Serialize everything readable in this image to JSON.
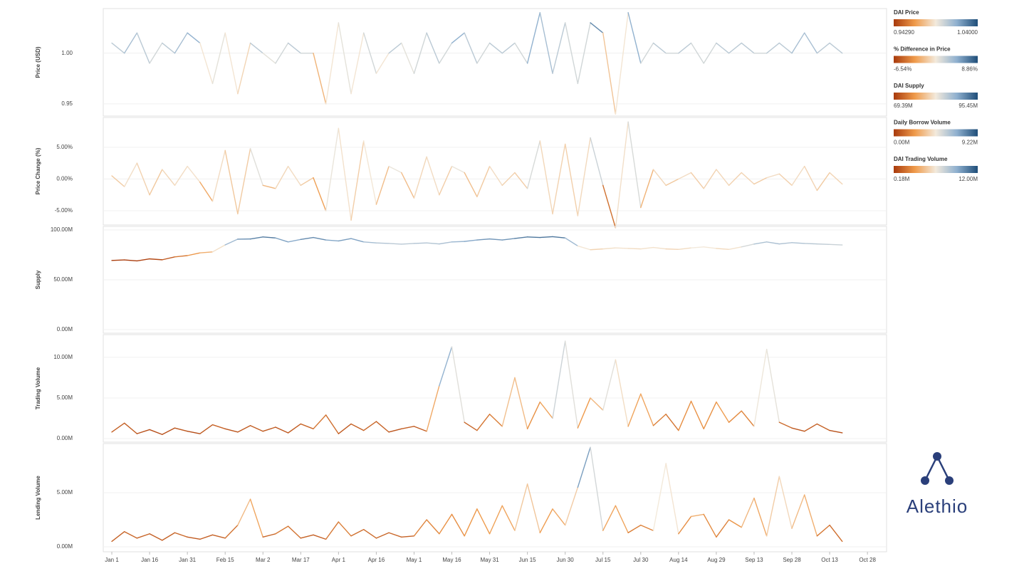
{
  "logo": "Alethio",
  "chart_data": [
    {
      "type": "line",
      "ylabel": "Price (USD)",
      "ylim": [
        0.938,
        1.044
      ],
      "yticks": [
        0.95,
        {
          "value": 1,
          "label": "1.00"
        }
      ],
      "xlim": [
        -3.4,
        307.6
      ],
      "x": [
        0,
        5,
        10,
        15,
        20,
        25,
        30,
        35,
        40,
        45,
        50,
        55,
        60,
        65,
        70,
        75,
        80,
        85,
        90,
        95,
        100,
        105,
        110,
        115,
        120,
        125,
        130,
        135,
        140,
        145,
        150,
        155,
        160,
        165,
        170,
        175,
        180,
        185,
        190,
        195,
        200,
        205,
        210,
        215,
        220,
        225,
        230,
        235,
        240,
        245,
        250,
        255,
        260,
        265,
        270,
        275,
        280,
        285,
        290
      ],
      "values": [
        1.01,
        1.0,
        1.02,
        0.99,
        1.01,
        1.0,
        1.02,
        1.01,
        0.97,
        1.02,
        0.96,
        1.01,
        1.0,
        0.99,
        1.01,
        1.0,
        1.0,
        0.95,
        1.03,
        0.96,
        1.02,
        0.98,
        1.0,
        1.01,
        0.98,
        1.02,
        0.99,
        1.01,
        1.02,
        0.99,
        1.01,
        1.0,
        1.01,
        0.99,
        1.04,
        0.98,
        1.03,
        0.97,
        1.03,
        1.02,
        0.94,
        1.04,
        0.99,
        1.01,
        1.0,
        1.0,
        1.01,
        0.99,
        1.01,
        1.0,
        1.01,
        1.0,
        1.0,
        1.01,
        1.0,
        1.02,
        1.0,
        1.01,
        1.0
      ],
      "color_scale": {
        "title": "DAI Price",
        "min": {
          "value": 0.9429,
          "label": "0.94290"
        },
        "max": {
          "value": 1.04,
          "label": "1.04000"
        },
        "colors": [
          "#a83a0c",
          "#ef9a4a",
          "#f3eadc",
          "#8fb0cf",
          "#1f4e79"
        ]
      }
    },
    {
      "type": "line",
      "ylabel": "Price Change (%)",
      "ylim": [
        -7.25,
        9.7
      ],
      "yticks": [
        {
          "value": -5,
          "label": "-5.00%"
        },
        {
          "value": 0,
          "label": "0.00%"
        },
        {
          "value": 5,
          "label": "5.00%"
        }
      ],
      "xlim": [
        -3.4,
        307.6
      ],
      "x": [
        0,
        5,
        10,
        15,
        20,
        25,
        30,
        35,
        40,
        45,
        50,
        55,
        60,
        65,
        70,
        75,
        80,
        85,
        90,
        95,
        100,
        105,
        110,
        115,
        120,
        125,
        130,
        135,
        140,
        145,
        150,
        155,
        160,
        165,
        170,
        175,
        180,
        185,
        190,
        195,
        200,
        205,
        210,
        215,
        220,
        225,
        230,
        235,
        240,
        245,
        250,
        255,
        260,
        265,
        270,
        275,
        280,
        285,
        290
      ],
      "values": [
        0.5,
        -1.2,
        2.5,
        -2.5,
        1.5,
        -1.0,
        2.0,
        -0.5,
        -3.5,
        4.5,
        -5.5,
        4.8,
        -1.0,
        -1.5,
        2.0,
        -1.0,
        0.2,
        -5.0,
        8.0,
        -6.5,
        6.0,
        -4.0,
        2.0,
        1.0,
        -3.0,
        3.5,
        -2.5,
        2.0,
        1.0,
        -2.8,
        2.0,
        -1.0,
        1.0,
        -1.5,
        6.0,
        -5.5,
        5.5,
        -5.8,
        6.5,
        -1.0,
        -7.7,
        9.0,
        -4.5,
        1.5,
        -1.0,
        0.0,
        1.0,
        -1.5,
        1.5,
        -1.0,
        1.0,
        -0.8,
        0.2,
        0.8,
        -1.0,
        2.0,
        -1.8,
        1.0,
        -0.8
      ],
      "color_scale": {
        "title": "% Difference in Price",
        "min": {
          "value": -6.54,
          "label": "-6.54%"
        },
        "max": {
          "value": 8.86,
          "label": "8.86%"
        },
        "colors": [
          "#a83a0c",
          "#ef9a4a",
          "#f3eadc",
          "#8fb0cf",
          "#1f4e79"
        ]
      }
    },
    {
      "type": "line",
      "ylabel": "Supply",
      "ylim": [
        -3.6,
        103.6
      ],
      "yticks": [
        {
          "value": 0,
          "label": "0.00M"
        },
        {
          "value": 50,
          "label": "50.00M"
        },
        {
          "value": 100,
          "label": "100.00M"
        }
      ],
      "xlim": [
        -3.4,
        307.6
      ],
      "x": [
        0,
        5,
        10,
        15,
        20,
        25,
        30,
        35,
        40,
        45,
        50,
        55,
        60,
        65,
        70,
        75,
        80,
        85,
        90,
        95,
        100,
        105,
        110,
        115,
        120,
        125,
        130,
        135,
        140,
        145,
        150,
        155,
        160,
        165,
        170,
        175,
        180,
        185,
        190,
        195,
        200,
        205,
        210,
        215,
        220,
        225,
        230,
        235,
        240,
        245,
        250,
        255,
        260,
        265,
        270,
        275,
        280,
        285,
        290
      ],
      "values": [
        69.4,
        70.0,
        69.0,
        71.0,
        70.1,
        73.0,
        74.3,
        77.0,
        78.0,
        85.0,
        90.8,
        91.0,
        93.0,
        92.0,
        88.0,
        90.5,
        92.5,
        90.0,
        89.0,
        91.4,
        88.0,
        87.0,
        86.5,
        85.8,
        86.5,
        87.0,
        86.0,
        88.0,
        88.5,
        90.0,
        91.0,
        90.0,
        91.5,
        93.0,
        92.5,
        93.3,
        92.0,
        84.0,
        80.2,
        81.0,
        82.0,
        81.5,
        81.0,
        82.5,
        81.0,
        80.5,
        82.0,
        83.0,
        81.5,
        80.5,
        83.0,
        85.9,
        88.0,
        86.0,
        87.3,
        86.5,
        86.0,
        85.5,
        85.0
      ],
      "color_scale": {
        "title": "DAI Supply",
        "min": {
          "value": 69.39,
          "label": "69.39M"
        },
        "max": {
          "value": 95.45,
          "label": "95.45M"
        },
        "colors": [
          "#a83a0c",
          "#ef9a4a",
          "#f3eadc",
          "#8fb0cf",
          "#1f4e79"
        ]
      }
    },
    {
      "type": "line",
      "ylabel": "Trading Volume",
      "ylim": [
        -0.44,
        12.8
      ],
      "yticks": [
        {
          "value": 0,
          "label": "0.00M"
        },
        {
          "value": 5,
          "label": "5.00M"
        },
        {
          "value": 10,
          "label": "10.00M"
        }
      ],
      "xlim": [
        -3.4,
        307.6
      ],
      "x": [
        0,
        5,
        10,
        15,
        20,
        25,
        30,
        35,
        40,
        45,
        50,
        55,
        60,
        65,
        70,
        75,
        80,
        85,
        90,
        95,
        100,
        105,
        110,
        115,
        120,
        125,
        130,
        135,
        140,
        145,
        150,
        155,
        160,
        165,
        170,
        175,
        180,
        185,
        190,
        195,
        200,
        205,
        210,
        215,
        220,
        225,
        230,
        235,
        240,
        245,
        250,
        255,
        260,
        265,
        270,
        275,
        280,
        285,
        290
      ],
      "values": [
        0.8,
        1.9,
        0.6,
        1.1,
        0.5,
        1.3,
        0.9,
        0.6,
        1.7,
        1.2,
        0.8,
        1.6,
        0.9,
        1.4,
        0.7,
        1.8,
        1.2,
        2.9,
        0.6,
        1.8,
        1.0,
        2.1,
        0.8,
        1.2,
        1.5,
        0.9,
        6.5,
        11.3,
        2.0,
        1.0,
        3.0,
        1.5,
        7.5,
        1.2,
        4.5,
        2.5,
        12.0,
        1.3,
        5.0,
        3.5,
        9.7,
        1.5,
        5.5,
        1.6,
        3.0,
        1.0,
        4.6,
        1.2,
        4.5,
        2.0,
        3.4,
        1.5,
        11.0,
        2.0,
        1.3,
        0.9,
        1.8,
        1.0,
        0.7
      ],
      "color_scale": {
        "title": "DAI Trading Volume",
        "min": {
          "value": 0.18,
          "label": "0.18M"
        },
        "max": {
          "value": 12,
          "label": "12.00M"
        },
        "colors": [
          "#a83a0c",
          "#ef9a4a",
          "#f3eadc",
          "#8fb0cf",
          "#1f4e79"
        ]
      }
    },
    {
      "type": "line",
      "ylabel": "Lending Volume",
      "ylim": [
        -0.46,
        9.54
      ],
      "yticks": [
        {
          "value": 0,
          "label": "0.00M"
        },
        {
          "value": 5,
          "label": "5.00M"
        }
      ],
      "xlim": [
        -3.4,
        307.6
      ],
      "xticks": [
        {
          "value": 0,
          "label": "Jan 1"
        },
        {
          "value": 15,
          "label": "Jan 16"
        },
        {
          "value": 30,
          "label": "Jan 31"
        },
        {
          "value": 45,
          "label": "Feb 15"
        },
        {
          "value": 60,
          "label": "Mar 2"
        },
        {
          "value": 75,
          "label": "Mar 17"
        },
        {
          "value": 90,
          "label": "Apr 1"
        },
        {
          "value": 105,
          "label": "Apr 16"
        },
        {
          "value": 120,
          "label": "May 1"
        },
        {
          "value": 135,
          "label": "May 16"
        },
        {
          "value": 150,
          "label": "May 31"
        },
        {
          "value": 165,
          "label": "Jun 15"
        },
        {
          "value": 180,
          "label": "Jun 30"
        },
        {
          "value": 195,
          "label": "Jul 15"
        },
        {
          "value": 210,
          "label": "Jul 30"
        },
        {
          "value": 225,
          "label": "Aug 14"
        },
        {
          "value": 240,
          "label": "Aug 29"
        },
        {
          "value": 255,
          "label": "Sep 13"
        },
        {
          "value": 270,
          "label": "Sep 28"
        },
        {
          "value": 285,
          "label": "Oct 13"
        },
        {
          "value": 300,
          "label": "Oct 28"
        }
      ],
      "x": [
        0,
        5,
        10,
        15,
        20,
        25,
        30,
        35,
        40,
        45,
        50,
        55,
        60,
        65,
        70,
        75,
        80,
        85,
        90,
        95,
        100,
        105,
        110,
        115,
        120,
        125,
        130,
        135,
        140,
        145,
        150,
        155,
        160,
        165,
        170,
        175,
        180,
        185,
        190,
        195,
        200,
        205,
        210,
        215,
        220,
        225,
        230,
        235,
        240,
        245,
        250,
        255,
        260,
        265,
        270,
        275,
        280,
        285,
        290
      ],
      "values": [
        0.5,
        1.4,
        0.8,
        1.2,
        0.6,
        1.3,
        0.9,
        0.7,
        1.1,
        0.8,
        2.0,
        4.4,
        0.9,
        1.2,
        1.9,
        0.8,
        1.1,
        0.7,
        2.3,
        1.0,
        1.6,
        0.8,
        1.3,
        0.9,
        1.0,
        2.5,
        1.2,
        3.0,
        1.0,
        3.5,
        1.2,
        3.8,
        1.5,
        5.8,
        1.3,
        3.5,
        2.0,
        5.5,
        9.2,
        1.5,
        3.8,
        1.3,
        2.0,
        1.5,
        7.7,
        1.2,
        2.8,
        3.0,
        0.9,
        2.5,
        1.8,
        4.5,
        1.0,
        6.5,
        1.7,
        4.8,
        1.0,
        2.0,
        0.5
      ],
      "color_scale": {
        "title": "Daily Borrow Volume",
        "min": {
          "value": 0,
          "label": "0.00M"
        },
        "max": {
          "value": 9.22,
          "label": "9.22M"
        },
        "colors": [
          "#a83a0c",
          "#ef9a4a",
          "#f3eadc",
          "#8fb0cf",
          "#1f4e79"
        ]
      }
    }
  ]
}
